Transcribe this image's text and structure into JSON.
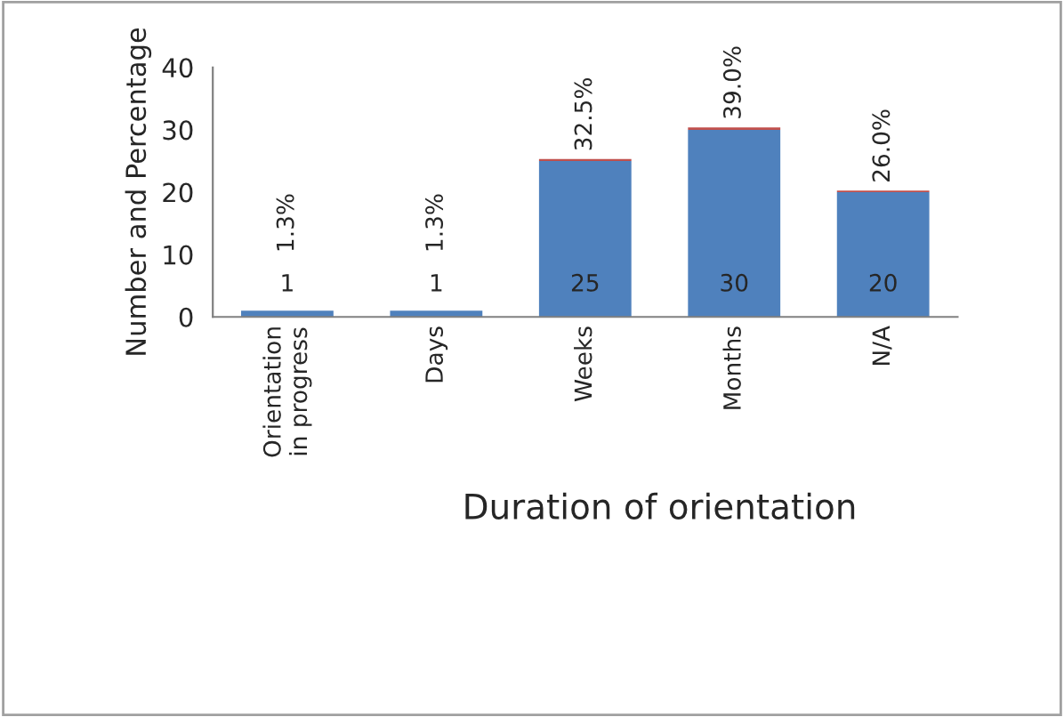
{
  "chart_data": {
    "type": "bar",
    "stacked": true,
    "xlabel": "Duration of orientation",
    "ylabel": "Number and Percentage",
    "categories": [
      "Orientation\nin progress",
      "Days",
      "Weeks",
      "Months",
      "N/A"
    ],
    "series": [
      {
        "color": "#4f81bd",
        "values": [
          1,
          1,
          25,
          30,
          20
        ],
        "value_labels": [
          "1",
          "1",
          "25",
          "30",
          "20"
        ]
      },
      {
        "color": "#c0504d",
        "values": [
          0.013,
          0.013,
          0.325,
          0.39,
          0.26
        ],
        "value_labels": [
          "1.3%",
          "1.3%",
          "32.5%",
          "39.0%",
          "26.0%"
        ]
      }
    ],
    "ylim": [
      0,
      40
    ],
    "yticks": [
      0,
      10,
      20,
      30,
      40
    ],
    "grid": false,
    "legend": false
  }
}
